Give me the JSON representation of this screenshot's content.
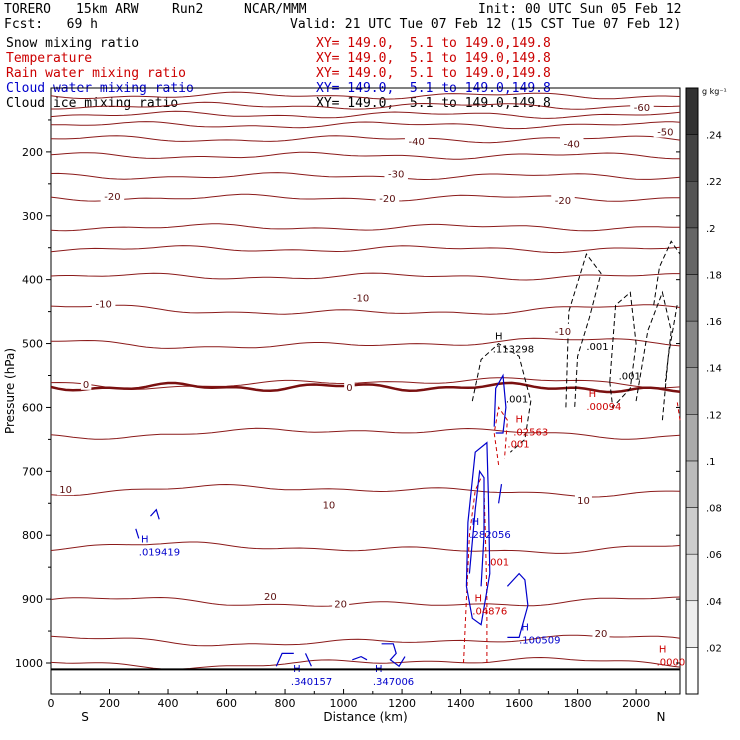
{
  "header": {
    "model": "TORERO",
    "resolution": "15km ARW",
    "run": "Run2",
    "org": "NCAR/MMM",
    "init": "Init: 00 UTC Sun 05 Feb 12",
    "fcst": "Fcst:   69 h",
    "valid": "Valid: 21 UTC Tue 07 Feb 12 (15 CST Tue 07 Feb 12)"
  },
  "legend": [
    {
      "name": "Snow mixing ratio",
      "xy": "XY= 149.0,  5.1 to 149.0,149.8",
      "color": "#000000"
    },
    {
      "name": "Temperature",
      "xy": "XY= 149.0,  5.1 to 149.0,149.8",
      "color": "#cc0000"
    },
    {
      "name": "Rain water mixing ratio",
      "xy": "XY= 149.0,  5.1 to 149.0,149.8",
      "color": "#cc0000"
    },
    {
      "name": "Cloud water mixing ratio",
      "xy": "XY= 149.0,  5.1 to 149.0,149.8",
      "color": "#0000cc"
    },
    {
      "name": "Cloud ice mixing ratio",
      "xy": "XY= 149.0,  5.1 to 149.0,149.8",
      "color": "#000000"
    }
  ],
  "chart_data": {
    "type": "cross-section",
    "xlabel": "Distance (km)",
    "ylabel": "Pressure (hPa)",
    "xlim": [
      0,
      2150
    ],
    "ylim": [
      1050,
      100
    ],
    "x_ticks": [
      0,
      200,
      400,
      600,
      800,
      1000,
      1200,
      1400,
      1600,
      1800,
      2000
    ],
    "x_tick_labels": [
      "0",
      "200",
      "400",
      "600",
      "800",
      "1000",
      "1200",
      "1400",
      "1600",
      "1800",
      "2000"
    ],
    "y_ticks": [
      200,
      300,
      400,
      500,
      600,
      700,
      800,
      900,
      1000
    ],
    "y_tick_labels": [
      "200",
      "300",
      "400",
      "500",
      "600",
      "700",
      "800",
      "900",
      "1000"
    ],
    "left_end_label": "S",
    "right_end_label": "N",
    "colorbar": {
      "unit": "g kg⁻¹",
      "ticks": [
        0.02,
        0.04,
        0.06,
        0.08,
        0.1,
        0.12,
        0.14,
        0.16,
        0.18,
        0.2,
        0.22,
        0.24
      ],
      "tick_labels": [
        ".02",
        ".04",
        ".06",
        ".08",
        ".1",
        ".12",
        ".14",
        ".16",
        ".18",
        ".2",
        ".22",
        ".24"
      ]
    },
    "temperature_labels": [
      {
        "x": 2020,
        "p": 130,
        "text": "-60"
      },
      {
        "x": 2100,
        "p": 168,
        "text": "-50"
      },
      {
        "x": 1780,
        "p": 187,
        "text": "-40"
      },
      {
        "x": 1250,
        "p": 183,
        "text": "-40"
      },
      {
        "x": 1180,
        "p": 234,
        "text": "-30"
      },
      {
        "x": 210,
        "p": 269,
        "text": "-20"
      },
      {
        "x": 1150,
        "p": 272,
        "text": "-20"
      },
      {
        "x": 1750,
        "p": 275,
        "text": "-20"
      },
      {
        "x": 180,
        "p": 437,
        "text": "-10"
      },
      {
        "x": 1060,
        "p": 428,
        "text": "-10"
      },
      {
        "x": 1750,
        "p": 480,
        "text": "-10"
      },
      {
        "x": 120,
        "p": 563,
        "text": "0"
      },
      {
        "x": 1020,
        "p": 568,
        "text": "0"
      },
      {
        "x": 50,
        "p": 728,
        "text": "10"
      },
      {
        "x": 950,
        "p": 752,
        "text": "10"
      },
      {
        "x": 1820,
        "p": 745,
        "text": "10"
      },
      {
        "x": 750,
        "p": 895,
        "text": "20"
      },
      {
        "x": 990,
        "p": 907,
        "text": "20"
      },
      {
        "x": 1880,
        "p": 953,
        "text": "20"
      }
    ],
    "temperature_contour_p_at_left": [
      112,
      128,
      142,
      158,
      180,
      206,
      238,
      272,
      318,
      352,
      395,
      448,
      500,
      562,
      640,
      730,
      820,
      905,
      965,
      1000
    ],
    "extrema_labels": [
      {
        "x": 1510,
        "p": 500,
        "marker": "H",
        "value": ".113298",
        "color": "#000000"
      },
      {
        "x": 1580,
        "p": 630,
        "marker": "H",
        "value": ".02563",
        "color": "#cc0000"
      },
      {
        "x": 1830,
        "p": 590,
        "marker": "H",
        "value": ".00094",
        "color": "#cc0000"
      },
      {
        "x": 300,
        "p": 818,
        "marker": "H",
        "value": ".019419",
        "color": "#0000cc"
      },
      {
        "x": 1430,
        "p": 790,
        "marker": "H",
        "value": ".282056",
        "color": "#0000cc"
      },
      {
        "x": 1440,
        "p": 910,
        "marker": "H",
        "value": ".04876",
        "color": "#cc0000"
      },
      {
        "x": 1600,
        "p": 955,
        "marker": "H",
        "value": ".100509",
        "color": "#0000cc"
      },
      {
        "x": 820,
        "p": 1020,
        "marker": "H",
        "value": ".340157",
        "color": "#0000cc"
      },
      {
        "x": 1100,
        "p": 1020,
        "marker": "H",
        "value": ".347006",
        "color": "#0000cc"
      },
      {
        "x": 2070,
        "p": 990,
        "marker": "H",
        "value": ".0000",
        "color": "#cc0000"
      }
    ],
    "contour_value_labels": [
      {
        "x": 1555,
        "p": 592,
        "text": ".001",
        "color": "#000000"
      },
      {
        "x": 1560,
        "p": 663,
        "text": ".001",
        "color": "#cc0000"
      },
      {
        "x": 1490,
        "p": 847,
        "text": ".001",
        "color": "#cc0000"
      },
      {
        "x": 1830,
        "p": 510,
        "text": ".001",
        "color": "#000000"
      },
      {
        "x": 1940,
        "p": 556,
        "text": ".001",
        "color": "#000000"
      }
    ]
  }
}
